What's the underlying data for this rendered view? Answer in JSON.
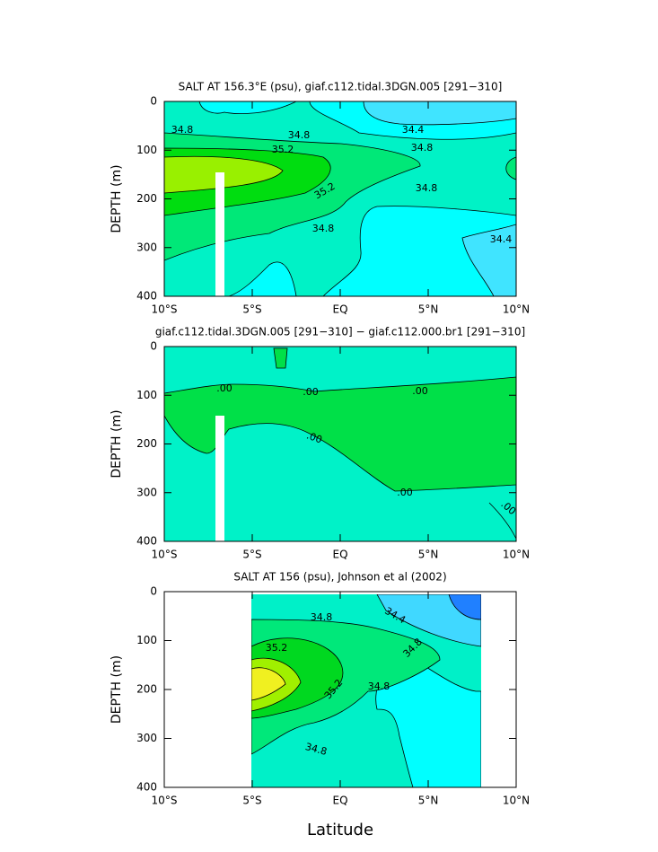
{
  "chart_data": [
    {
      "type": "contour",
      "title": "SALT AT 156.3°E (psu), giaf.c112.tidal.3DGN.005 [291−310]",
      "y_label": "DEPTH (m)",
      "xlim": [
        -10,
        10
      ],
      "ylim": [
        400,
        0
      ],
      "xticks": [
        {
          "value": -10,
          "label": "10°S"
        },
        {
          "value": -5,
          "label": "5°S"
        },
        {
          "value": 0,
          "label": "EQ"
        },
        {
          "value": 5,
          "label": "5°N"
        },
        {
          "value": 10,
          "label": "10°N"
        }
      ],
      "yticks": [
        0,
        100,
        200,
        300,
        400
      ],
      "contour_labels": [
        34.8,
        34.8,
        34.4,
        35.2,
        34.8,
        35.2,
        34.8,
        34.8,
        34.4
      ]
    },
    {
      "type": "contour",
      "title": "giaf.c112.tidal.3DGN.005 [291−310] − giaf.c112.000.br1 [291−310]",
      "y_label": "DEPTH (m)",
      "xlim": [
        -10,
        10
      ],
      "ylim": [
        400,
        0
      ],
      "xticks": [
        {
          "value": -10,
          "label": "10°S"
        },
        {
          "value": -5,
          "label": "5°S"
        },
        {
          "value": 0,
          "label": "EQ"
        },
        {
          "value": 5,
          "label": "5°N"
        },
        {
          "value": 10,
          "label": "10°N"
        }
      ],
      "yticks": [
        0,
        100,
        200,
        300,
        400
      ],
      "contour_labels": [
        {
          "value": 0,
          "label": ".00"
        },
        {
          "value": 0,
          "label": ".00"
        },
        {
          "value": 0,
          "label": ".00"
        },
        {
          "value": 0,
          "label": ".00"
        },
        {
          "value": 0,
          "label": ".00"
        },
        {
          "value": 0,
          "label": ".00"
        }
      ]
    },
    {
      "type": "contour",
      "title": "SALT AT 156 (psu), Johnson et al (2002)",
      "y_label": "DEPTH (m)",
      "x_label": "Latitude",
      "xlim": [
        -10,
        10
      ],
      "ylim": [
        400,
        0
      ],
      "xticks": [
        {
          "value": -10,
          "label": "10°S"
        },
        {
          "value": -5,
          "label": "5°S"
        },
        {
          "value": 0,
          "label": "EQ"
        },
        {
          "value": 5,
          "label": "5°N"
        },
        {
          "value": 10,
          "label": "10°N"
        }
      ],
      "yticks": [
        0,
        100,
        200,
        300,
        400
      ],
      "contour_labels": [
        34.8,
        34.4,
        35.2,
        34.8,
        35.2,
        34.8,
        34.8
      ]
    }
  ]
}
